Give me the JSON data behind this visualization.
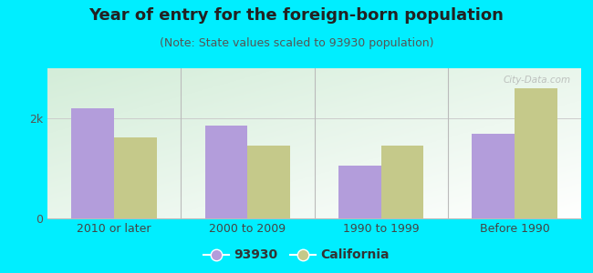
{
  "title": "Year of entry for the foreign-born population",
  "subtitle": "(Note: State values scaled to 93930 population)",
  "categories": [
    "2010 or later",
    "2000 to 2009",
    "1990 to 1999",
    "Before 1990"
  ],
  "series_93930": [
    2200,
    1850,
    1050,
    1700
  ],
  "series_california": [
    1620,
    1450,
    1450,
    2600
  ],
  "color_93930": "#b39ddb",
  "color_california": "#c5c98a",
  "background_outer": "#00eeff",
  "ylabel_tick": "2k",
  "ytick_val": 2000,
  "ylim": [
    0,
    3000
  ],
  "bar_width": 0.32,
  "legend_93930": "93930",
  "legend_california": "California",
  "title_fontsize": 13,
  "subtitle_fontsize": 9,
  "tick_fontsize": 9,
  "legend_fontsize": 10,
  "watermark": "City-Data.com"
}
